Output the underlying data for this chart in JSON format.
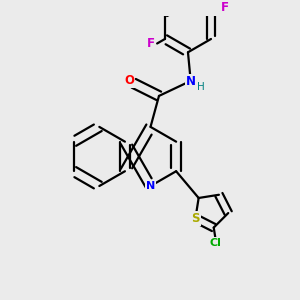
{
  "background_color": "#ebebeb",
  "atom_colors": {
    "C": "#000000",
    "N": "#0000ff",
    "O": "#ff0000",
    "F": "#cc00cc",
    "S": "#aaaa00",
    "Cl": "#00aa00",
    "H": "#008080"
  },
  "bond_color": "#000000",
  "bond_width": 1.6,
  "xlim": [
    0,
    10
  ],
  "ylim": [
    0,
    10
  ]
}
